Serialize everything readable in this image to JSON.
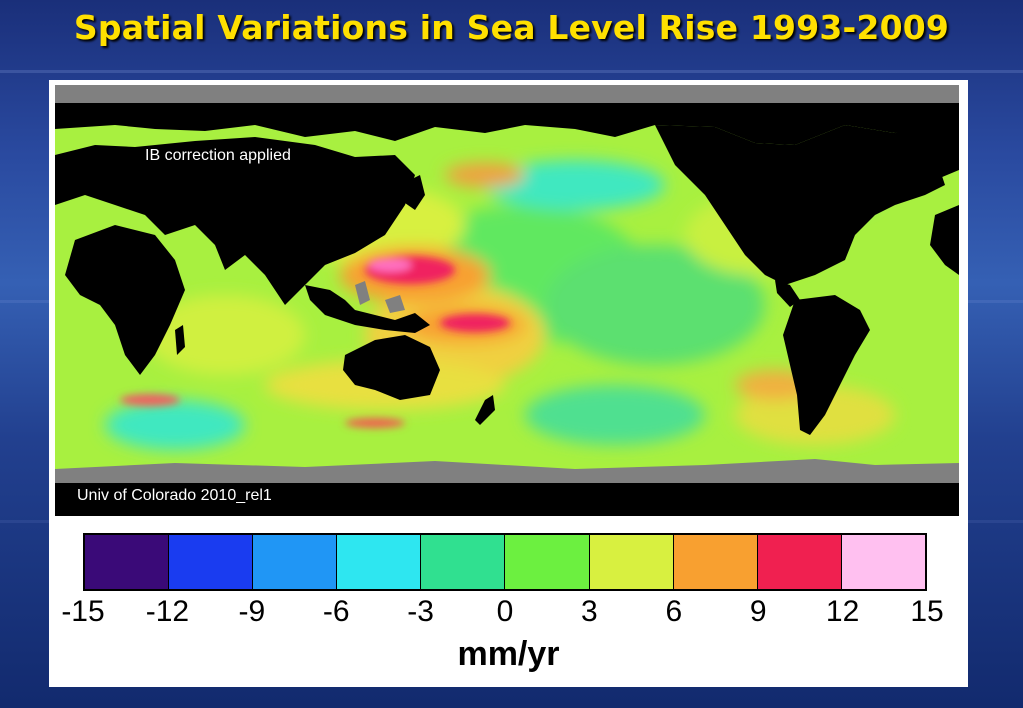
{
  "slide": {
    "title": "Spatial Variations in Sea Level Rise 1993-2009"
  },
  "map": {
    "annotation_top": "IB correction applied",
    "annotation_bottom": "Univ of Colorado 2010_rel1",
    "land_color": "#000000",
    "ice_color": "#808080",
    "ocean_base_color": "#a8f040"
  },
  "colorbar": {
    "unit": "mm/yr",
    "ticks": [
      "-15",
      "-12",
      "-9",
      "-6",
      "-3",
      "0",
      "3",
      "6",
      "9",
      "12",
      "15"
    ],
    "range": [
      -15,
      15
    ],
    "segments": [
      {
        "from": -15,
        "to": -12,
        "color": "#3a0a78"
      },
      {
        "from": -12,
        "to": -9,
        "color": "#1a3cf0"
      },
      {
        "from": -9,
        "to": -6,
        "color": "#2096f5"
      },
      {
        "from": -6,
        "to": -3,
        "color": "#2ee6f0"
      },
      {
        "from": -3,
        "to": 0,
        "color": "#30e090"
      },
      {
        "from": 0,
        "to": 3,
        "color": "#6cf040"
      },
      {
        "from": 3,
        "to": 6,
        "color": "#d8f040"
      },
      {
        "from": 6,
        "to": 9,
        "color": "#f8a030"
      },
      {
        "from": 9,
        "to": 12,
        "color": "#f02050"
      },
      {
        "from": 12,
        "to": 15,
        "color": "#ffc0f0"
      }
    ]
  }
}
